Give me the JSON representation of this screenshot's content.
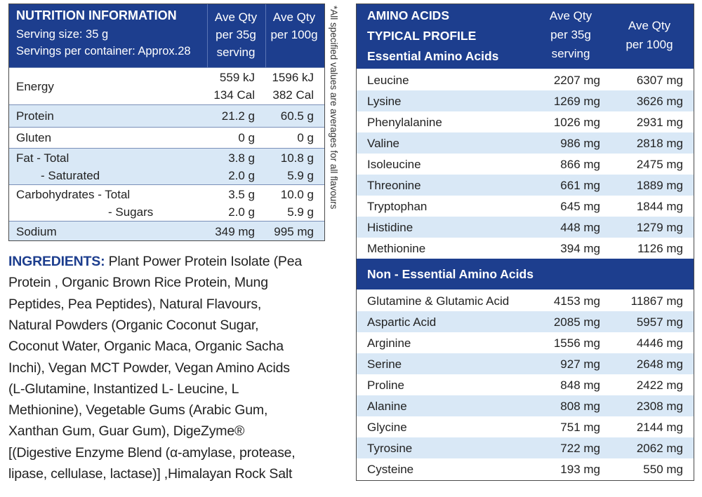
{
  "nutrition": {
    "title": "NUTRITION INFORMATION",
    "serving_size": "Serving size:  35 g",
    "servings": "Servings per container: Approx.28",
    "columns": [
      [
        "Ave Qty",
        "per 35g",
        "serving"
      ],
      [
        "Ave Qty",
        "per 100g"
      ]
    ],
    "rows": [
      {
        "label": [
          "Energy"
        ],
        "per_35g": [
          "559 kJ",
          "134 Cal"
        ],
        "per_100g": [
          "1596 kJ",
          "382 Cal"
        ]
      },
      {
        "label": [
          "Protein"
        ],
        "per_35g": [
          "21.2 g"
        ],
        "per_100g": [
          "60.5 g"
        ]
      },
      {
        "label": [
          "Gluten"
        ],
        "per_35g": [
          "0 g"
        ],
        "per_100g": [
          "0 g"
        ]
      },
      {
        "label": [
          "Fat -  Total",
          "- Saturated"
        ],
        "per_35g": [
          "3.8 g",
          "2.0 g"
        ],
        "per_100g": [
          "10.8 g",
          "5.9 g"
        ]
      },
      {
        "label": [
          "Carbohydrates  - Total",
          "- Sugars"
        ],
        "per_35g": [
          "3.5 g",
          "2.0 g"
        ],
        "per_100g": [
          "10.0 g",
          "5.9 g"
        ]
      },
      {
        "label": [
          "Sodium"
        ],
        "per_35g": [
          "349 mg"
        ],
        "per_100g": [
          "995 mg"
        ]
      }
    ],
    "footnote": "*All specified values are averages for all flavours"
  },
  "ingredients": {
    "label": "INGREDIENTS:",
    "lines": [
      "Plant Power Protein Isolate (Pea",
      "Protein , Organic Brown Rice Protein, Mung",
      "Peptides, Pea Peptides), Natural Flavours,",
      "Natural Powders (Organic Coconut Sugar,",
      "Coconut Water, Organic Maca, Organic Sacha",
      "Inchi), Vegan MCT Powder, Vegan Amino Acids",
      "(L-Glutamine, Instantized L- Leucine, L",
      "Methionine), Vegetable Gums (Arabic Gum,",
      "Xanthan Gum, Guar Gum), DigeZyme®",
      "[(Digestive Enzyme Blend (α-amylase, protease,",
      "lipase, cellulase, lactase)] ,Himalayan Rock Salt"
    ]
  },
  "amino": {
    "title": [
      "AMINO ACIDS",
      "TYPICAL PROFILE",
      "Essential Amino Acids"
    ],
    "columns": [
      [
        "Ave Qty",
        "per 35g",
        "serving"
      ],
      [
        "Ave Qty",
        "per 100g"
      ]
    ],
    "essential": [
      [
        "Leucine",
        "2207 mg",
        "6307 mg"
      ],
      [
        "Lysine",
        "1269 mg",
        "3626 mg"
      ],
      [
        "Phenylalanine",
        "1026 mg",
        "2931 mg"
      ],
      [
        "Valine",
        "986 mg",
        "2818 mg"
      ],
      [
        "Isoleucine",
        "866 mg",
        "2475 mg"
      ],
      [
        "Threonine",
        "661 mg",
        "1889 mg"
      ],
      [
        "Tryptophan",
        "645 mg",
        "1844 mg"
      ],
      [
        "Histidine",
        "448 mg",
        "1279 mg"
      ],
      [
        "Methionine",
        "394 mg",
        "1126 mg"
      ]
    ],
    "non_essential_title": "Non - Essential Amino Acids",
    "non_essential": [
      [
        "Glutamine & Glutamic Acid",
        "4153 mg",
        "11867 mg"
      ],
      [
        "Aspartic Acid",
        "2085 mg",
        "5957 mg"
      ],
      [
        "Arginine",
        "1556 mg",
        "4446 mg"
      ],
      [
        "Serine",
        "927 mg",
        "2648 mg"
      ],
      [
        "Proline",
        "848 mg",
        "2422 mg"
      ],
      [
        "Alanine",
        "808 mg",
        "2308 mg"
      ],
      [
        "Glycine",
        "751 mg",
        "2144 mg"
      ],
      [
        "Tyrosine",
        "722 mg",
        "2062 mg"
      ],
      [
        "Cysteine",
        "193 mg",
        "550 mg"
      ]
    ]
  }
}
